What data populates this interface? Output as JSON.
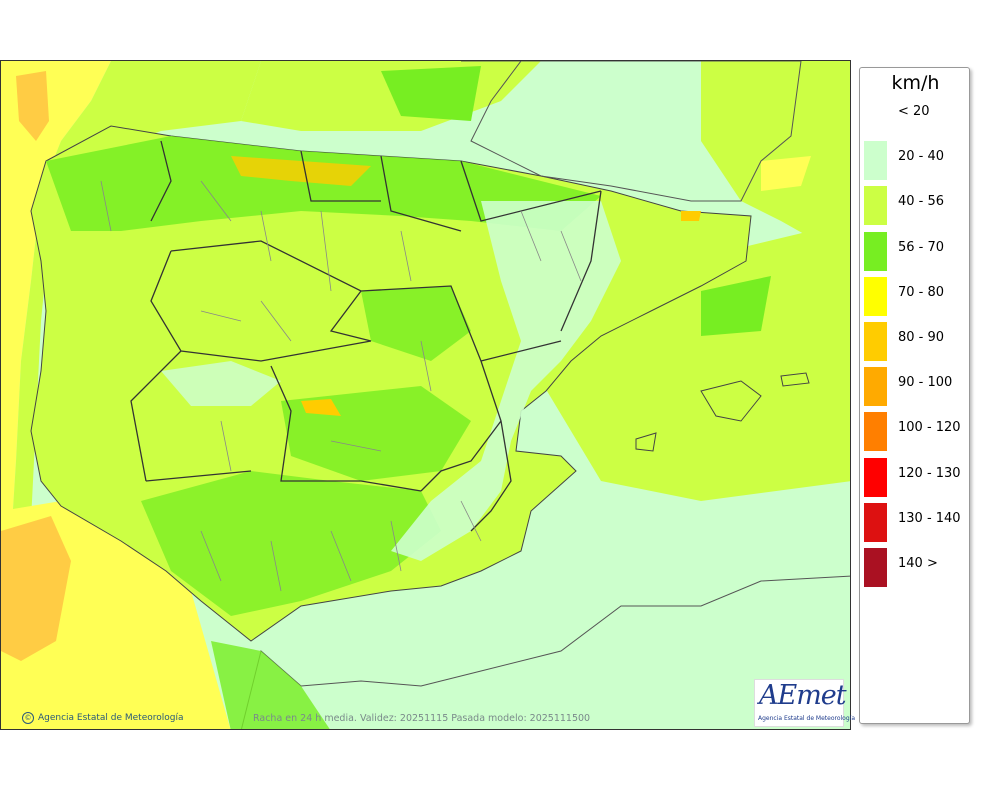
{
  "legend": {
    "unit": "km/h",
    "items": [
      {
        "label": "< 20",
        "color": "#ffffff"
      },
      {
        "label": "20 - 40",
        "color": "#ccffcc"
      },
      {
        "label": "40 - 56",
        "color": "#ccff44"
      },
      {
        "label": "56 - 70",
        "color": "#77ee22"
      },
      {
        "label": "70 - 80",
        "color": "#ffff00"
      },
      {
        "label": "80 - 90",
        "color": "#ffcc00"
      },
      {
        "label": "90 - 100",
        "color": "#ffaa00"
      },
      {
        "label": "100 - 120",
        "color": "#ff7f00"
      },
      {
        "label": "120 - 130",
        "color": "#ff0000"
      },
      {
        "label": "130 - 140",
        "color": "#dd1111"
      },
      {
        "label": "140 >",
        "color": "#aa1122"
      }
    ]
  },
  "credit": "Agencia Estatal de Meteorología",
  "footer": "Racha en 24 h media. Validez: 20251115 Pasada modelo: 2025111500",
  "logo": {
    "wordmark": "AEmet",
    "subtitle": "Agencia Estatal de Meteorología"
  }
}
